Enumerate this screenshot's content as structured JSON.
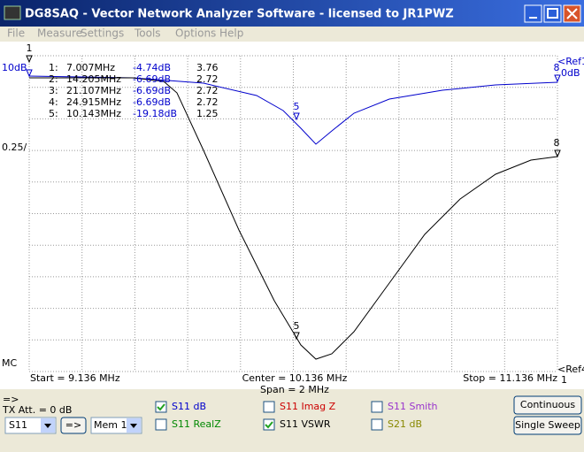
{
  "window": {
    "title": "DG8SAQ  -  Vector Network Analyzer Software  -  licensed to JR1PWZ"
  },
  "menu": [
    "File",
    "Measure",
    "Settings",
    "Tools",
    "Options",
    "Help"
  ],
  "markers": [
    [
      "1:",
      "7.007MHz",
      "-4.74dB",
      "3.76"
    ],
    [
      "2:",
      "14.205MHz",
      "-6.69dB",
      "2.72"
    ],
    [
      "3:",
      "21.107MHz",
      "-6.69dB",
      "2.72"
    ],
    [
      "4:",
      "24.915MHz",
      "-6.69dB",
      "2.72"
    ],
    [
      "5:",
      "10.143MHz",
      "-19.18dB",
      "1.25"
    ]
  ],
  "plot": {
    "top_marker": "1",
    "scale1": "10dB",
    "scale2": "0.25/",
    "bottom_ref": "MC",
    "ref1": "<Ref1",
    "ref1_value": "0dB",
    "ref4": "<Ref4",
    "ref4_value": "1",
    "trace1_marker": "5",
    "trace2_marker": "5",
    "trace1_end_marker": "8",
    "trace2_end_marker": "8"
  },
  "sweep": {
    "start": "Start = 9.136 MHz",
    "center": "Center = 10.136 MHz",
    "span": "Span = 2 MHz",
    "stop": "Stop = 11.136 MHz"
  },
  "controls": {
    "arrow_label": "=>",
    "tx_att": "TX Att. = 0 dB",
    "port": "S11",
    "arrow_button": "=>",
    "memory": "Mem 1",
    "checkboxes": [
      {
        "label": "S11  dB",
        "checked": true,
        "color": "#0000cc"
      },
      {
        "label": "S11  Imag Z",
        "checked": false,
        "color": "#cc0000"
      },
      {
        "label": "S11  Smith",
        "checked": false,
        "color": "#9933cc"
      },
      {
        "label": "S11  RealZ",
        "checked": false,
        "color": "#008800"
      },
      {
        "label": "S11  VSWR",
        "checked": true,
        "color": "#000000"
      },
      {
        "label": "S21  dB",
        "checked": false,
        "color": "#888800"
      }
    ],
    "continuous": "Continuous",
    "single_sweep": "Single Sweep"
  }
}
